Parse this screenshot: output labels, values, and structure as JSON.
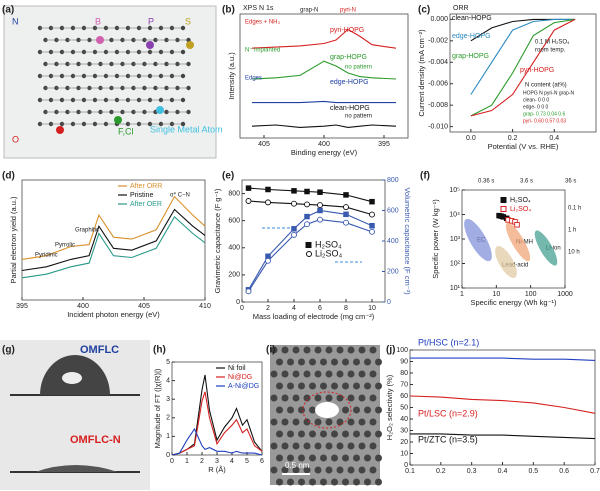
{
  "panel_labels": [
    "(a)",
    "(b)",
    "(c)",
    "(d)",
    "(e)",
    "(f)",
    "(g)",
    "(h)",
    "(i)",
    "(j)"
  ],
  "a": {
    "labels": [
      "N",
      "B",
      "P",
      "S",
      "O",
      "F,Cl",
      "Single Metal Atom"
    ]
  },
  "b": {
    "type": "line",
    "title": "XPS N 1s",
    "xlabel": "Binding energy (eV)",
    "ylabel": "Intensity (a.u.)",
    "xlim": [
      407,
      393
    ],
    "xticks": [
      405,
      400,
      395
    ],
    "ylim": [
      0,
      10.5
    ],
    "x": [
      406,
      404,
      402,
      400,
      399,
      398,
      397,
      396,
      394
    ],
    "series": [
      {
        "name": "pyri-HOPG",
        "color": "#d62020",
        "values": [
          7.6,
          7.7,
          7.8,
          8,
          8.3,
          9.2,
          8.6,
          7.9,
          7.6
        ]
      },
      {
        "name": "grap-HOPG",
        "color": "#2a9a2a",
        "values": [
          5,
          5.1,
          5.3,
          6.5,
          6.1,
          5.5,
          5.2,
          5.1,
          5
        ]
      },
      {
        "name": "edge-HOPG",
        "color": "#2040a0",
        "values": [
          3,
          3,
          3,
          3.1,
          3,
          3,
          3,
          3,
          3
        ]
      },
      {
        "name": "clean-HOPG",
        "color": "#111111",
        "values": [
          1,
          1.1,
          0.9,
          1,
          1.1,
          0.9,
          1,
          1.1,
          1
        ]
      }
    ],
    "annotations": [
      "Edges + NH₃",
      "grap-N",
      "pyri-N",
      "N⁺ implanted",
      "no pattern",
      "Edges",
      "no pattern"
    ]
  },
  "c": {
    "type": "line",
    "title": "ORR",
    "xlabel": "Potential (V vs. RHE)",
    "ylabel": "Current density (mA cm⁻²)",
    "xlim": [
      -0.1,
      0.6
    ],
    "xticks": [
      {
        "value": 0,
        "label": "0.0"
      },
      0.2,
      0.4
    ],
    "ylim": [
      -0.0105,
      0.0005
    ],
    "yticks": [
      {
        "value": 0,
        "label": "0.000"
      },
      {
        "value": -0.002,
        "label": "-0.002"
      },
      {
        "value": -0.004,
        "label": "-0.004"
      },
      {
        "value": -0.006,
        "label": "-0.006"
      },
      {
        "value": -0.008,
        "label": "-0.008"
      },
      {
        "value": -0.01,
        "label": "-0.010"
      }
    ],
    "x": [
      0,
      0.1,
      0.2,
      0.3,
      0.4,
      0.5
    ],
    "series": [
      {
        "name": "clean-HOPG",
        "color": "#111111",
        "values": [
          -0.002,
          -0.0008,
          -0.0002,
          0,
          0,
          0
        ]
      },
      {
        "name": "edge-HOPG",
        "color": "#2a8ac0",
        "values": [
          -0.007,
          -0.004,
          -0.001,
          -0.0002,
          0,
          0
        ]
      },
      {
        "name": "grap-HOPG",
        "color": "#2a9a2a",
        "values": [
          -0.009,
          -0.008,
          -0.005,
          -0.0015,
          -0.0003,
          0
        ]
      },
      {
        "name": "pyri-HOPG",
        "color": "#d62020",
        "values": [
          -0.009,
          -0.0085,
          -0.007,
          -0.004,
          -0.001,
          0
        ]
      }
    ],
    "annotations": [
      "0.1 M H₂SO₄",
      "room temp.",
      "N content (at%)",
      "HOPG  N  pyri-N grap-N",
      "clean-  0    0    0",
      "edge-  0    0    0",
      "grap-  0.73 0.04 0.6",
      "pyri-  0.60 0.57 0.03"
    ]
  },
  "d": {
    "type": "line",
    "xlabel": "Incident photon energy (eV)",
    "ylabel": "Partial electron yield (a.u.)",
    "xlim": [
      395,
      410
    ],
    "xticks": [
      395,
      400,
      405,
      410
    ],
    "ylim": [
      0,
      6.5
    ],
    "x": [
      395,
      397,
      399,
      400.5,
      401.3,
      402.5,
      404,
      406,
      407.5,
      409,
      410
    ],
    "series": [
      {
        "name": "After ORR",
        "color": "#d8902a",
        "values": [
          2.2,
          2.4,
          2.9,
          3.0,
          4.6,
          3.4,
          3.3,
          3.8,
          5.6,
          4.6,
          4.0
        ]
      },
      {
        "name": "Pristine",
        "color": "#111111",
        "values": [
          1.6,
          1.8,
          2.2,
          2.4,
          4.0,
          2.8,
          2.7,
          3.2,
          4.9,
          4.0,
          3.5
        ]
      },
      {
        "name": "After OER",
        "color": "#2a9a8a",
        "values": [
          1.2,
          1.4,
          1.8,
          2.0,
          3.6,
          2.4,
          2.3,
          2.8,
          4.5,
          3.6,
          3.1
        ]
      }
    ],
    "annotations": [
      "Pyridinic",
      "Pyrrolic",
      "Graphitic",
      "σ* C−N"
    ]
  },
  "e": {
    "type": "line",
    "xlabel": "Mass loading of electrode (mg cm⁻²)",
    "ylabel": "Gravimetric capacitance (F g⁻¹)",
    "y2label": "Volumetric capacitance (F cm⁻³)",
    "xlim": [
      0,
      11
    ],
    "xticks": [
      0,
      2,
      4,
      6,
      8,
      10
    ],
    "ylim": [
      0,
      900
    ],
    "yticks": [
      0,
      200,
      400,
      600,
      800
    ],
    "y2lim": [
      0,
      800
    ],
    "y2ticks": [
      0,
      200,
      400,
      600,
      800
    ],
    "x": [
      0.5,
      2,
      4,
      5,
      6,
      8,
      10
    ],
    "series": [
      {
        "name": "H₂SO₄",
        "color": "#111111",
        "marker": "square",
        "filled": true,
        "values": [
          840,
          830,
          820,
          815,
          810,
          790,
          740
        ]
      },
      {
        "name": "Li₂SO₄",
        "color": "#111111",
        "marker": "circle",
        "filled": false,
        "values": [
          745,
          735,
          725,
          720,
          715,
          700,
          645
        ]
      },
      {
        "color": "#3a5ab0",
        "marker": "square",
        "filled": true,
        "axis": "y2",
        "values": [
          80,
          300,
          480,
          560,
          600,
          575,
          500
        ]
      },
      {
        "color": "#3a5ab0",
        "marker": "circle",
        "filled": false,
        "axis": "y2",
        "values": [
          70,
          270,
          440,
          510,
          540,
          520,
          460
        ]
      }
    ]
  },
  "f": {
    "type": "scatter",
    "xlabel": "Specific energy (Wh kg⁻¹)",
    "ylabel": "Specific power (W kg⁻¹)",
    "xlog": true,
    "ylog": true,
    "xlim": [
      1,
      1000
    ],
    "xticks": [
      1,
      10,
      100,
      1000
    ],
    "ylim": [
      10,
      100000
    ],
    "yticks": [
      {
        "value": 10,
        "label": "10¹"
      },
      {
        "value": 100,
        "label": "10²"
      },
      {
        "value": 1000,
        "label": "10³"
      },
      {
        "value": 10000,
        "label": "10⁴"
      },
      {
        "value": 100000,
        "label": "10⁵"
      }
    ],
    "series": [
      {
        "name": "H₂SO₄",
        "color": "#111111",
        "marker": "square",
        "filled": true,
        "x": [
          12,
          14,
          16,
          20
        ],
        "values": [
          9000,
          8500,
          8000,
          7000
        ]
      },
      {
        "name": "Li₂SO₄",
        "color": "#d62020",
        "marker": "square",
        "filled": false,
        "x": [
          22,
          28,
          35,
          40
        ],
        "values": [
          6000,
          5500,
          5000,
          3800
        ]
      }
    ],
    "annotations": [
      "0.36 s",
      "3.6 s",
      "36 s",
      "0.1 h",
      "1 h",
      "10 h",
      "EC",
      "Ni-MH",
      "Lead-acid",
      "Li-ion"
    ]
  },
  "g": {
    "labels": [
      "OMFLC",
      "OMFLC-N"
    ]
  },
  "h": {
    "type": "line",
    "xlabel": "R (Å)",
    "ylabel": "Magnitude of FT (|χ(R)|)",
    "xlim": [
      0,
      6
    ],
    "xticks": [
      0,
      1,
      2,
      3,
      4,
      5,
      6
    ],
    "ylim": [
      0,
      5
    ],
    "yticks": [
      0,
      1,
      2,
      3,
      4,
      5
    ],
    "x": [
      0,
      0.5,
      1,
      1.5,
      2,
      2.2,
      2.5,
      3,
      3.5,
      4,
      4.3,
      4.7,
      5,
      5.5,
      6
    ],
    "series": [
      {
        "name": "Ni foil",
        "color": "#111111",
        "values": [
          0,
          0.1,
          0.3,
          0.6,
          3.5,
          4.3,
          2.4,
          0.8,
          1.5,
          2.0,
          2.5,
          1.6,
          1.9,
          0.7,
          0.2
        ]
      },
      {
        "name": "Ni@DG",
        "color": "#d62020",
        "values": [
          0,
          0.1,
          0.3,
          0.5,
          2.9,
          3.4,
          2.0,
          0.6,
          1.2,
          1.6,
          1.9,
          1.2,
          1.4,
          0.5,
          0.2
        ]
      },
      {
        "name": "A-Ni@DG",
        "color": "#2040c0",
        "values": [
          0,
          0.1,
          0.8,
          1.4,
          0.5,
          0.3,
          0.4,
          0.2,
          0.2,
          0.1,
          0.2,
          0.1,
          0.1,
          0.1,
          0
        ]
      }
    ]
  },
  "i": {
    "scale": "0.5 nm"
  },
  "j": {
    "type": "line",
    "ylabel": "H₂O₂ selectivity (%)",
    "xlim": [
      0.1,
      0.7
    ],
    "xticks": [
      0.1,
      0.2,
      0.3,
      0.4,
      0.5,
      0.6,
      0.7
    ],
    "ylim": [
      0,
      100
    ],
    "yticks": [
      0,
      10,
      20,
      30,
      40,
      50,
      60,
      70,
      80,
      90,
      100
    ],
    "x": [
      0.1,
      0.2,
      0.3,
      0.4,
      0.5,
      0.6,
      0.7
    ],
    "series": [
      {
        "name": "Pt/HSC (n=2.1)",
        "color": "#2040c0",
        "values": [
          93,
          93,
          93,
          93,
          92,
          92,
          91
        ]
      },
      {
        "name": "Pt/LSC (n=2.9)",
        "color": "#d62020",
        "values": [
          60,
          59,
          57,
          56,
          54,
          50,
          45
        ]
      },
      {
        "name": "Pt/ZTC (n=3.5)",
        "color": "#111111",
        "values": [
          27,
          27,
          26,
          26,
          25,
          24,
          23
        ]
      }
    ]
  }
}
